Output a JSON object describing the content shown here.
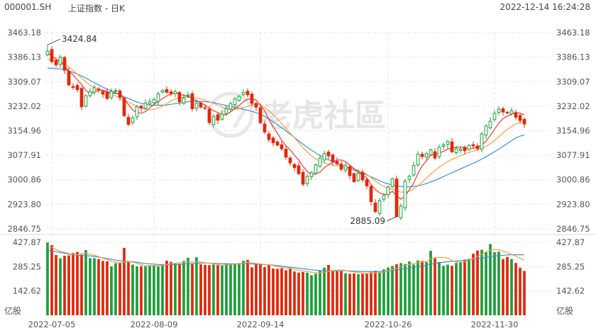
{
  "header": {
    "symbol": "000001.SH",
    "title": "上证指数 - 日K",
    "timestamp": "2022-12-14 16:24:28"
  },
  "watermark": "老虎社區",
  "colors": {
    "up": "#1e9e3b",
    "down": "#e0280b",
    "ma_short": "#e53935",
    "ma_mid": "#f2a044",
    "ma_long": "#3d8fd6"
  },
  "chart_data": [
    {
      "type": "candlestick",
      "title": "上证指数 - 日K",
      "y_ticks": [
        "3463.18",
        "3386.13",
        "3309.07",
        "3232.02",
        "3154.96",
        "3077.91",
        "3000.86",
        "2923.80",
        "2846.75"
      ],
      "ylim": [
        2846.75,
        3463.18
      ],
      "x_ticks": [
        {
          "index": 1,
          "label": "2022-07-05"
        },
        {
          "index": 25,
          "label": "2022-08-09"
        },
        {
          "index": 50,
          "label": "2022-09-14"
        },
        {
          "index": 80,
          "label": "2022-10-26"
        },
        {
          "index": 105,
          "label": "2022-11-30"
        }
      ],
      "annotations": [
        {
          "label": "3424.84",
          "index": 0,
          "value": 3424.84
        },
        {
          "label": "2885.09",
          "index": 82,
          "value": 2885.09
        }
      ],
      "grid": true,
      "series": [
        {
          "role": "close",
          "values": [
            3405,
            3372,
            3362,
            3386,
            3345,
            3299,
            3291,
            3284,
            3230,
            3265,
            3278,
            3290,
            3284,
            3270,
            3256,
            3278,
            3281,
            3260,
            3202,
            3175,
            3195,
            3230,
            3226,
            3242,
            3247,
            3253,
            3271,
            3281,
            3276,
            3272,
            3278,
            3246,
            3258,
            3267,
            3224,
            3242,
            3229,
            3226,
            3181,
            3200,
            3188,
            3207,
            3224,
            3240,
            3255,
            3263,
            3275,
            3268,
            3241,
            3229,
            3180,
            3151,
            3127,
            3117,
            3110,
            3098,
            3072,
            3054,
            3039,
            3020,
            2987,
            3011,
            3023,
            3048,
            3069,
            3083,
            3076,
            3058,
            3051,
            3034,
            3047,
            3014,
            2995,
            3022,
            3001,
            2982,
            2932,
            2901,
            2935,
            2951,
            2978,
            3004,
            2885,
            2918,
            2996,
            3012,
            3046,
            3081,
            3074,
            3083,
            3095,
            3069,
            3103,
            3111,
            3121,
            3089,
            3098,
            3097,
            3092,
            3109,
            3107,
            3099,
            3145,
            3170,
            3185,
            3210,
            3223,
            3214,
            3211,
            3217,
            3197,
            3187,
            3176
          ]
        },
        {
          "role": "ma_short",
          "values": [
            3400,
            3390,
            3380,
            3372,
            3360,
            3342,
            3330,
            3315,
            3300,
            3282,
            3270,
            3276,
            3282,
            3283,
            3278,
            3274,
            3272,
            3270,
            3255,
            3237,
            3220,
            3212,
            3210,
            3215,
            3227,
            3237,
            3247,
            3256,
            3264,
            3270,
            3274,
            3270,
            3266,
            3263,
            3256,
            3250,
            3242,
            3236,
            3226,
            3218,
            3212,
            3205,
            3206,
            3214,
            3225,
            3234,
            3246,
            3254,
            3255,
            3251,
            3236,
            3218,
            3190,
            3167,
            3147,
            3125,
            3108,
            3095,
            3078,
            3063,
            3043,
            3027,
            3017,
            3019,
            3025,
            3039,
            3048,
            3057,
            3063,
            3063,
            3058,
            3047,
            3036,
            3025,
            3016,
            3007,
            2986,
            2970,
            2960,
            2955,
            2955,
            2965,
            2950,
            2940,
            2950,
            2970,
            2990,
            3020,
            3045,
            3060,
            3078,
            3080,
            3085,
            3090,
            3098,
            3100,
            3103,
            3104,
            3102,
            3098,
            3100,
            3103,
            3110,
            3122,
            3140,
            3160,
            3178,
            3193,
            3201,
            3207,
            3212,
            3210,
            3205
          ]
        },
        {
          "role": "ma_mid",
          "values": [
            3380,
            3378,
            3375,
            3372,
            3366,
            3356,
            3344,
            3333,
            3320,
            3308,
            3298,
            3290,
            3284,
            3280,
            3276,
            3270,
            3264,
            3258,
            3252,
            3245,
            3238,
            3232,
            3226,
            3222,
            3221,
            3222,
            3226,
            3232,
            3240,
            3248,
            3255,
            3258,
            3260,
            3261,
            3260,
            3258,
            3255,
            3251,
            3246,
            3241,
            3235,
            3229,
            3224,
            3222,
            3222,
            3224,
            3228,
            3232,
            3236,
            3238,
            3235,
            3228,
            3218,
            3205,
            3192,
            3178,
            3162,
            3147,
            3133,
            3118,
            3102,
            3088,
            3076,
            3066,
            3059,
            3054,
            3050,
            3047,
            3045,
            3043,
            3041,
            3039,
            3035,
            3030,
            3025,
            3018,
            3008,
            2997,
            2988,
            2980,
            2974,
            2971,
            2966,
            2962,
            2962,
            2965,
            2972,
            2982,
            2994,
            3006,
            3019,
            3030,
            3040,
            3050,
            3058,
            3065,
            3071,
            3077,
            3082,
            3087,
            3091,
            3095,
            3100,
            3106,
            3114,
            3124,
            3136,
            3148,
            3159,
            3168,
            3176,
            3181,
            3184
          ]
        },
        {
          "role": "ma_long",
          "values": [
            3352,
            3351,
            3350,
            3349,
            3347,
            3343,
            3338,
            3333,
            3327,
            3320,
            3313,
            3306,
            3299,
            3292,
            3286,
            3280,
            3274,
            3268,
            3262,
            3256,
            3250,
            3245,
            3241,
            3238,
            3236,
            3235,
            3235,
            3235,
            3236,
            3238,
            3240,
            3242,
            3244,
            3246,
            3247,
            3247,
            3247,
            3246,
            3245,
            3243,
            3240,
            3237,
            3234,
            3231,
            3228,
            3225,
            3222,
            3219,
            3216,
            3212,
            3207,
            3200,
            3192,
            3183,
            3174,
            3164,
            3154,
            3144,
            3134,
            3123,
            3113,
            3103,
            3094,
            3085,
            3077,
            3070,
            3064,
            3058,
            3052,
            3046,
            3041,
            3036,
            3031,
            3026,
            3021,
            3016,
            3010,
            3004,
            2998,
            2992,
            2988,
            2985,
            2982,
            2980,
            2979,
            2979,
            2980,
            2982,
            2985,
            2989,
            2994,
            2999,
            3005,
            3011,
            3017,
            3023,
            3029,
            3035,
            3041,
            3047,
            3053,
            3059,
            3066,
            3073,
            3081,
            3089,
            3097,
            3106,
            3115,
            3124,
            3132,
            3138,
            3142
          ]
        }
      ]
    },
    {
      "type": "bar",
      "title": "",
      "y_ticks": [
        "427.87",
        "285.25",
        "142.62"
      ],
      "ylim": [
        0,
        427.87
      ],
      "unit": "亿股",
      "x_ticks": [
        {
          "index": 1,
          "label": "2022-07-05"
        },
        {
          "index": 25,
          "label": "2022-08-09"
        },
        {
          "index": 50,
          "label": "2022-09-14"
        },
        {
          "index": 80,
          "label": "2022-10-26"
        },
        {
          "index": 105,
          "label": "2022-11-30"
        }
      ],
      "series": [
        {
          "role": "volume",
          "values": [
            427,
            411,
            353,
            334,
            349,
            351,
            365,
            372,
            356,
            382,
            335,
            335,
            330,
            319,
            317,
            287,
            305,
            309,
            395,
            312,
            297,
            287,
            288,
            287,
            294,
            293,
            287,
            296,
            320,
            313,
            307,
            302,
            319,
            337,
            300,
            340,
            299,
            296,
            294,
            298,
            294,
            291,
            305,
            301,
            303,
            306,
            320,
            325,
            281,
            300,
            297,
            283,
            297,
            274,
            273,
            276,
            264,
            273,
            257,
            250,
            254,
            250,
            235,
            244,
            263,
            279,
            295,
            258,
            258,
            258,
            246,
            243,
            246,
            241,
            243,
            247,
            252,
            261,
            252,
            269,
            280,
            289,
            299,
            306,
            301,
            316,
            298,
            321,
            318,
            312,
            378,
            334,
            313,
            290,
            297,
            290,
            307,
            313,
            326,
            331,
            361,
            379,
            384,
            369,
            418,
            370,
            373,
            330,
            342,
            330,
            307,
            279,
            260
          ]
        },
        {
          "role": "ma_short",
          "values": [
            405,
            398,
            386,
            375,
            370,
            362,
            357,
            355,
            360,
            364,
            358,
            352,
            344,
            335,
            328,
            316,
            311,
            307,
            313,
            317,
            312,
            305,
            297,
            290,
            291,
            292,
            291,
            293,
            298,
            302,
            305,
            307,
            311,
            315,
            312,
            315,
            312,
            308,
            305,
            303,
            297,
            294,
            296,
            298,
            299,
            301,
            307,
            311,
            307,
            304,
            301,
            298,
            296,
            291,
            286,
            282,
            277,
            276,
            269,
            265,
            260,
            257,
            253,
            250,
            250,
            253,
            258,
            263,
            265,
            266,
            262,
            257,
            255,
            251,
            248,
            245,
            245,
            249,
            250,
            254,
            262,
            268,
            276,
            285,
            292,
            298,
            304,
            308,
            311,
            315,
            331,
            337,
            340,
            339,
            335,
            322,
            312,
            310,
            314,
            322,
            333,
            345,
            357,
            371,
            381,
            385,
            384,
            376,
            367,
            357,
            347,
            335,
            322
          ]
        },
        {
          "role": "ma_mid",
          "values": [
            380,
            378,
            373,
            368,
            364,
            359,
            355,
            352,
            350,
            349,
            348,
            345,
            341,
            337,
            333,
            328,
            323,
            320,
            318,
            316,
            314,
            311,
            307,
            304,
            302,
            300,
            298,
            297,
            296,
            296,
            297,
            298,
            300,
            302,
            303,
            305,
            306,
            306,
            306,
            305,
            304,
            303,
            302,
            302,
            302,
            302,
            302,
            302,
            301,
            300,
            299,
            297,
            296,
            294,
            291,
            288,
            285,
            282,
            279,
            276,
            273,
            270,
            267,
            264,
            262,
            261,
            261,
            261,
            261,
            261,
            261,
            260,
            259,
            258,
            257,
            256,
            256,
            256,
            257,
            259,
            261,
            263,
            266,
            269,
            273,
            277,
            281,
            285,
            289,
            294,
            299,
            304,
            308,
            311,
            314,
            316,
            318,
            320,
            322,
            325,
            328,
            331,
            335,
            339,
            343,
            347,
            350,
            352,
            354,
            355,
            355,
            355,
            354
          ]
        }
      ]
    }
  ]
}
